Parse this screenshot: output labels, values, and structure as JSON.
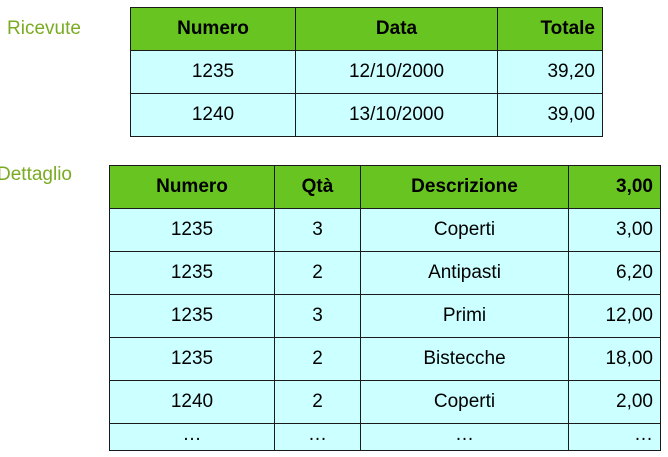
{
  "ricevute": {
    "label": "Ricevute",
    "headers": [
      "Numero",
      "Data",
      "Totale"
    ],
    "rows": [
      [
        "1235",
        "12/10/2000",
        "39,20"
      ],
      [
        "1240",
        "13/10/2000",
        "39,00"
      ]
    ]
  },
  "dettaglio": {
    "label": "Dettaglio",
    "headers": [
      "Numero",
      "Qtà",
      "Descrizione",
      "3,00"
    ],
    "rows": [
      [
        "1235",
        "3",
        "Coperti",
        "3,00"
      ],
      [
        "1235",
        "2",
        "Antipasti",
        "6,20"
      ],
      [
        "1235",
        "3",
        "Primi",
        "12,00"
      ],
      [
        "1235",
        "2",
        "Bistecche",
        "18,00"
      ],
      [
        "1240",
        "2",
        "Coperti",
        "2,00"
      ],
      [
        "…",
        "…",
        "…",
        "…"
      ]
    ]
  },
  "colors": {
    "label": "#7aab22",
    "header_bg": "#67c421",
    "cell_bg": "#ccffff",
    "border": "#1a1a1a"
  }
}
